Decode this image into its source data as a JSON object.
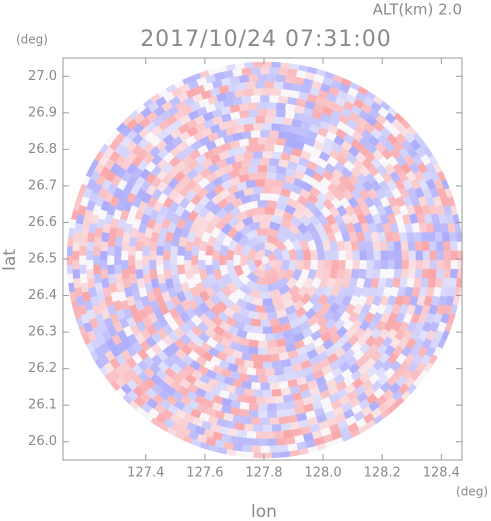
{
  "chart_data": {
    "type": "radar-ppi",
    "title": "2017/10/24 07:31:00",
    "subtitle": "ALT(km) 2.0",
    "x_label": "lon",
    "y_label": "lat",
    "x_unit": "(deg)",
    "y_unit": "(deg)",
    "xlim": [
      127.12,
      128.47
    ],
    "ylim": [
      25.95,
      27.05
    ],
    "xticks": [
      127.4,
      127.6,
      127.8,
      {
        "value": 128,
        "label": "128.0"
      },
      128.2,
      128.4
    ],
    "yticks": [
      {
        "value": 26,
        "label": "26.0"
      },
      26.1,
      26.2,
      26.3,
      26.4,
      26.5,
      26.6,
      26.7,
      26.8,
      26.9,
      {
        "value": 27,
        "label": "27.0"
      }
    ]
  }
}
